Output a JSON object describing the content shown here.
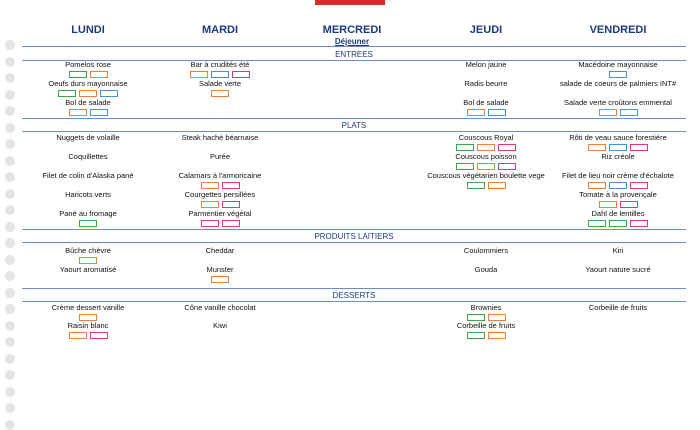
{
  "days": [
    "LUNDI",
    "MARDI",
    "MERCREDI",
    "JEUDI",
    "VENDREDI"
  ],
  "meal": "Déjeuner",
  "sections": [
    {
      "title": "ENTREES",
      "rows": [
        [
          "Pomelos rose",
          "Bar à crudités été",
          null,
          "Melon jaune",
          "Macédoine mayonnaise"
        ],
        [
          "Oeufs durs mayonnaise",
          "Salade verte",
          null,
          "Radis beurre",
          "salade de coeurs de palmiers INT#"
        ],
        [
          "Bol de salade",
          null,
          null,
          "Bol de salade",
          "Salade verte croûtons emmental"
        ]
      ]
    },
    {
      "title": "PLATS",
      "rows": [
        [
          "Nuggets de volaille",
          "Steak haché béarnaise",
          null,
          "Couscous Royal",
          "Rôti de veau sauce forestière"
        ],
        [
          "Coquillettes",
          "Purée",
          null,
          "Couscous poisson",
          "Riz créole"
        ],
        [
          "Filet de colin d'Alaska pané",
          "Calamars à l'armoricaine",
          null,
          "Couscous végétarien boulette vege",
          "Filet de lieu noir crème d'échalote"
        ],
        [
          "Haricots verts",
          "Courgettes persillées",
          null,
          null,
          "Tomate à la provençale"
        ],
        [
          "Pané au fromage",
          "Parmentier végétal",
          null,
          null,
          "Dahl de lentilles"
        ]
      ]
    },
    {
      "title": "PRODUITS LAITIERS",
      "rows": [
        [
          "Bûche chèvre",
          "Cheddar",
          null,
          "Coulommiers",
          "Kiri"
        ],
        [
          "Yaourt aromatisé",
          "Munster",
          null,
          "Gouda",
          "Yaourt nature sucré"
        ]
      ]
    },
    {
      "title": "DESSERTS",
      "rows": [
        [
          "Crème dessert vanille",
          "Cône vanille chocolat",
          null,
          "Brownies",
          "Corbeille de fruits"
        ],
        [
          "Raisin blanc",
          "Kiwi",
          null,
          "Corbeille de fruits",
          null
        ]
      ]
    }
  ]
}
